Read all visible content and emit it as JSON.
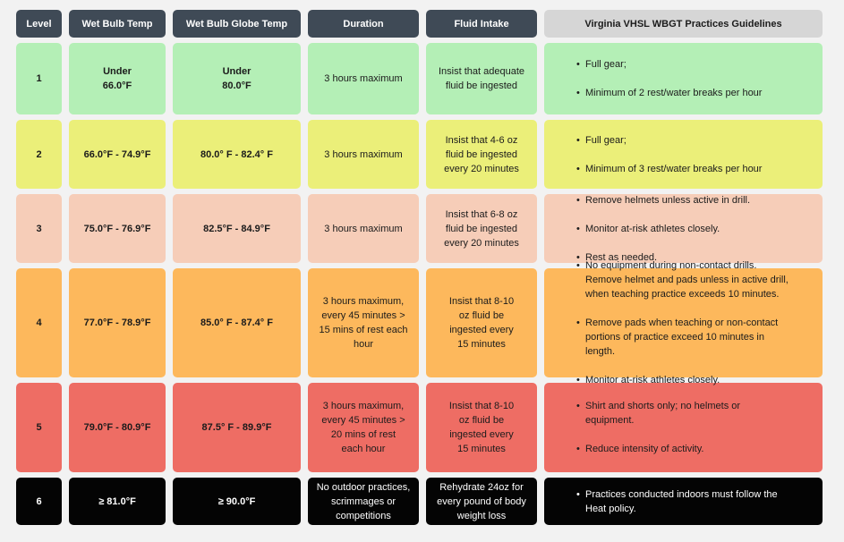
{
  "headers": {
    "level": "Level",
    "wet_bulb": "Wet Bulb Temp",
    "wbgt": "Wet Bulb Globe Temp",
    "duration": "Duration",
    "fluid": "Fluid Intake",
    "guidelines": "Virginia VHSL WBGT Practices Guidelines"
  },
  "colors": {
    "header_dark": "#3f4a56",
    "header_light": "#d6d6d6",
    "level_1": "#b4efb6",
    "level_2": "#ebef79",
    "level_3": "#f6cdb8",
    "level_4": "#fdb85c",
    "level_5": "#ee6d64",
    "level_6": "#040404"
  },
  "rows": [
    {
      "level": "1",
      "wet_bulb": "Under\n66.0°F",
      "wbgt": "Under\n80.0°F",
      "duration": "3 hours maximum",
      "fluid": "Insist that adequate\nfluid be ingested",
      "guidelines": [
        "Full gear;",
        "Minimum of 2 rest/water breaks per hour"
      ]
    },
    {
      "level": "2",
      "wet_bulb": "66.0°F - 74.9°F",
      "wbgt": "80.0° F - 82.4° F",
      "duration": "3 hours maximum",
      "fluid": "Insist that 4-6 oz\nfluid be ingested\nevery 20 minutes",
      "guidelines": [
        "Full gear;",
        "Minimum of 3 rest/water breaks per hour"
      ]
    },
    {
      "level": "3",
      "wet_bulb": "75.0°F - 76.9°F",
      "wbgt": "82.5°F - 84.9°F",
      "duration": "3 hours maximum",
      "fluid": "Insist that 6-8 oz\nfluid be ingested\nevery 20 minutes",
      "guidelines": [
        "Remove helmets unless active in drill.",
        "Monitor at-risk athletes closely.",
        "Rest as needed."
      ]
    },
    {
      "level": "4",
      "wet_bulb": "77.0°F - 78.9°F",
      "wbgt": "85.0° F - 87.4° F",
      "duration": "3 hours maximum,\nevery 45 minutes >\n15 mins of rest each\nhour",
      "fluid": "Insist that 8-10\noz fluid be\ningested every\n15 minutes",
      "guidelines": [
        "No equipment during non-contact drills.\nRemove helmet and pads unless in active drill,\nwhen teaching practice exceeds 10 minutes.",
        "Remove pads when teaching or non-contact\nportions of practice exceed 10 minutes in\nlength.",
        "Monitor at-risk athletes closely."
      ]
    },
    {
      "level": "5",
      "wet_bulb": "79.0°F - 80.9°F",
      "wbgt": "87.5° F - 89.9°F",
      "duration": "3 hours maximum,\nevery 45 minutes >\n20 mins of rest\neach hour",
      "fluid": "Insist that 8-10\noz fluid be\ningested every\n15 minutes",
      "guidelines": [
        "Shirt and shorts only; no helmets or\nequipment.",
        "Reduce intensity of activity."
      ]
    },
    {
      "level": "6",
      "wet_bulb": "≥ 81.0°F",
      "wbgt": "≥ 90.0°F",
      "duration": "No outdoor practices,\nscrimmages or\ncompetitions",
      "fluid": "Rehydrate 24oz for\nevery pound of body\nweight loss",
      "guidelines": [
        "Practices conducted indoors must follow the\nHeat policy."
      ]
    }
  ]
}
